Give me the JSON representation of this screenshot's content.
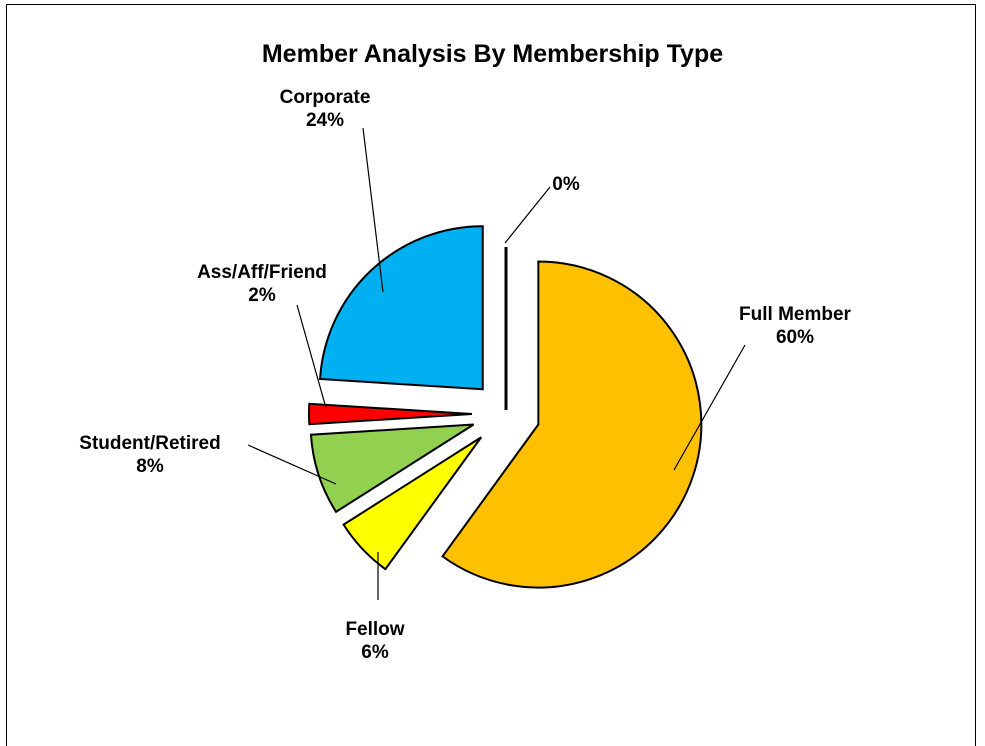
{
  "chart_data": {
    "type": "pie",
    "title": "Member Analysis By Membership Type",
    "slices": [
      {
        "label": "Full Member",
        "percent_label": "60%",
        "value": 60,
        "color": "#FFC000"
      },
      {
        "label": "Fellow",
        "percent_label": "6%",
        "value": 6,
        "color": "#FFFF00"
      },
      {
        "label": "Student/Retired",
        "percent_label": "8%",
        "value": 8,
        "color": "#92D050"
      },
      {
        "label": "Ass/Aff/Friend",
        "percent_label": "2%",
        "value": 2,
        "color": "#FF0000"
      },
      {
        "label": "Corporate",
        "percent_label": "24%",
        "value": 24,
        "color": "#00B0F0"
      },
      {
        "label": "",
        "percent_label": "0%",
        "value": 0,
        "color": "#000000"
      }
    ],
    "exploded": true,
    "legend": "none"
  }
}
